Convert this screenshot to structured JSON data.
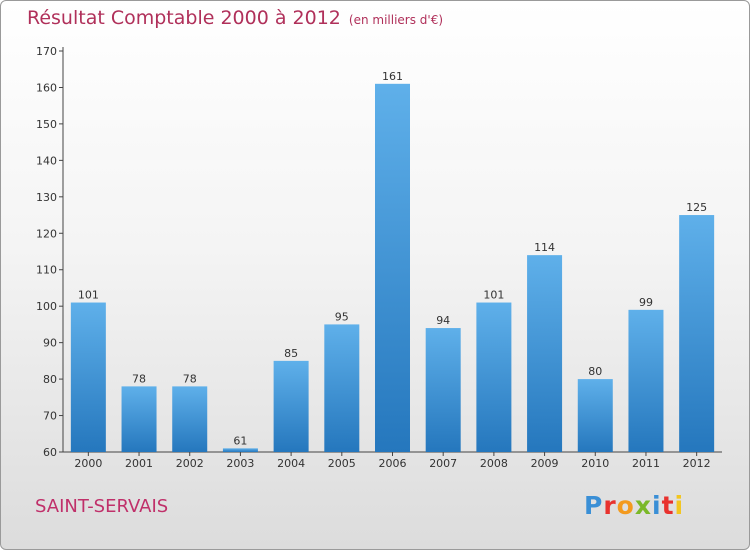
{
  "chart_data": {
    "type": "bar",
    "title": "Résultat Comptable 2000 à 2012",
    "subtitle": "(en milliers d'€)",
    "categories": [
      "2000",
      "2001",
      "2002",
      "2003",
      "2004",
      "2005",
      "2006",
      "2007",
      "2008",
      "2009",
      "2010",
      "2011",
      "2012"
    ],
    "values": [
      101,
      78,
      78,
      61,
      85,
      95,
      161,
      94,
      101,
      114,
      80,
      99,
      125
    ],
    "ylim": [
      60,
      170
    ],
    "yticks": [
      60,
      70,
      80,
      90,
      100,
      110,
      120,
      130,
      140,
      150,
      160,
      170
    ],
    "grid": false,
    "bar_color": "#3a8fd6"
  },
  "footer": {
    "city": "SAINT-SERVAIS",
    "logo_text": "Proxiti",
    "logo_colors": [
      "#3a8fd6",
      "#e8322e",
      "#f39a1e",
      "#7ab828",
      "#3a8fd6",
      "#e8322e",
      "#f3c61e"
    ]
  }
}
